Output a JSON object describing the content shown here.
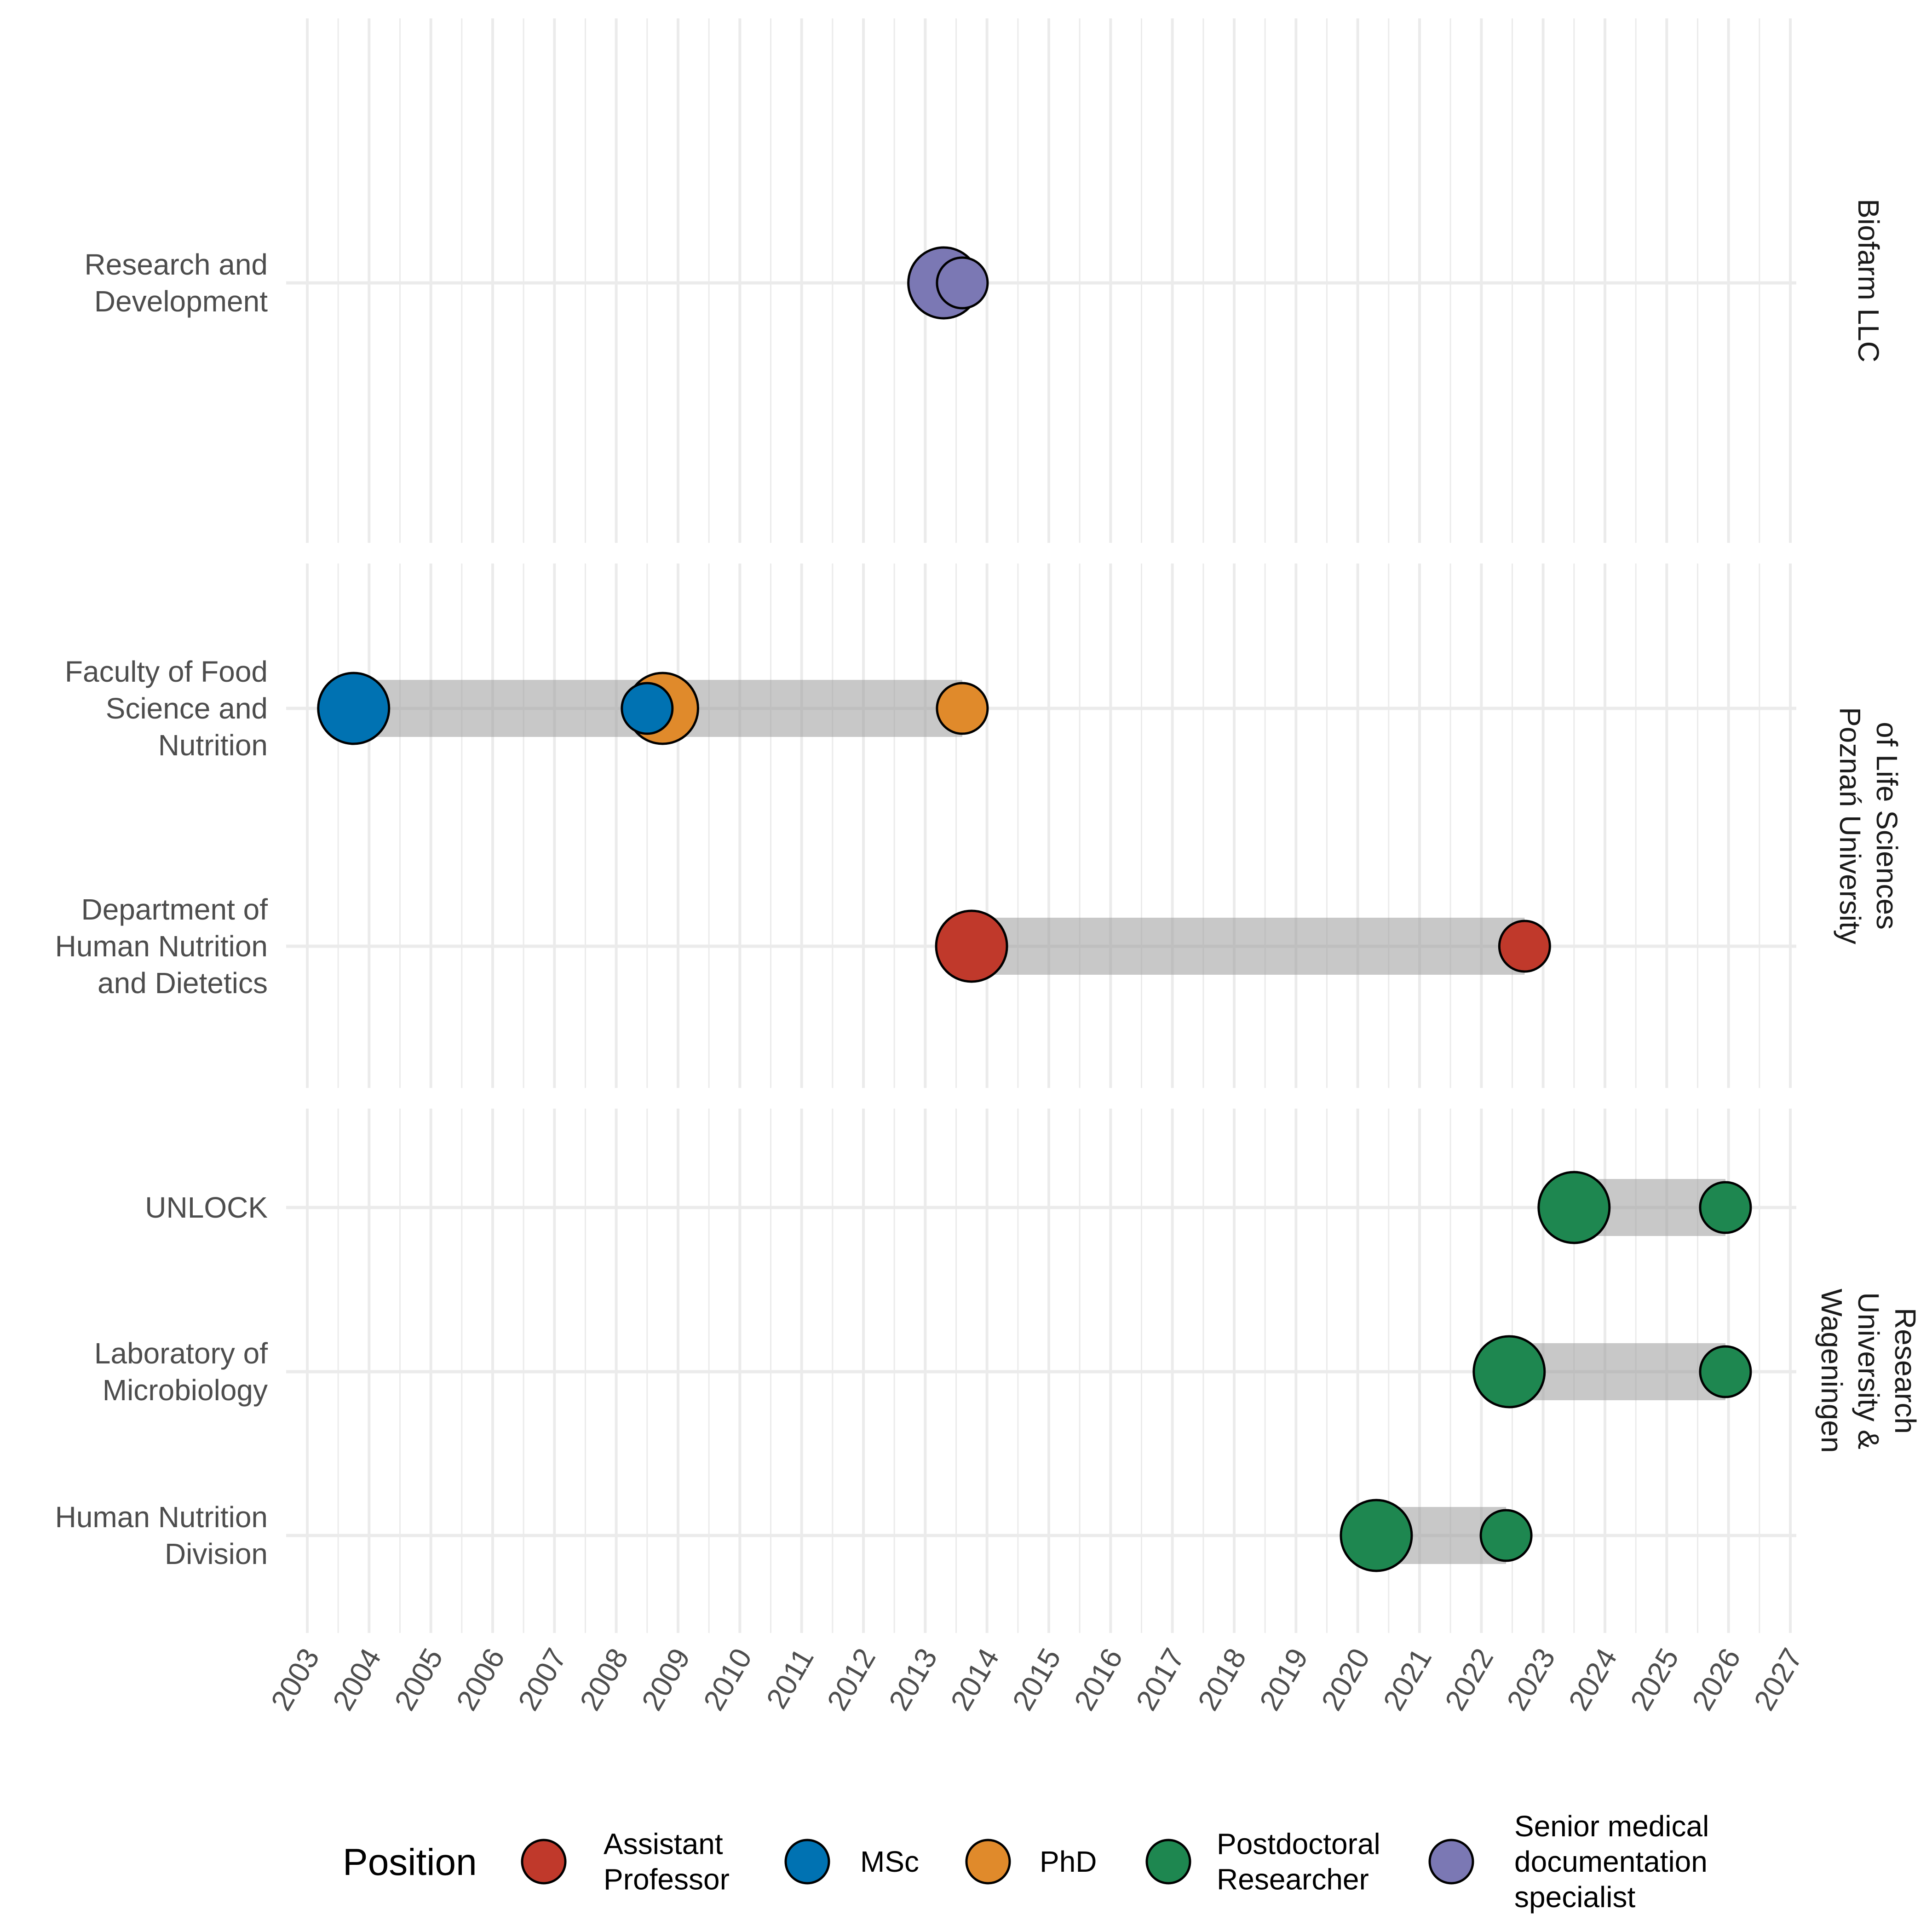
{
  "chart_data": {
    "type": "scatter",
    "xlabel": "",
    "ylabel": "",
    "xlim": [
      2003,
      2027
    ],
    "x_ticks": [
      "2003",
      "2004",
      "2005",
      "2006",
      "2007",
      "2008",
      "2009",
      "2010",
      "2011",
      "2012",
      "2013",
      "2014",
      "2015",
      "2016",
      "2017",
      "2018",
      "2019",
      "2020",
      "2021",
      "2022",
      "2023",
      "2024",
      "2025",
      "2026",
      "2027"
    ],
    "grid": true,
    "legend": {
      "title": "Position",
      "position": "bottom",
      "items": [
        {
          "name": "Assistant Professor",
          "lines": [
            "Assistant",
            "Professor"
          ],
          "color": "#C0392B"
        },
        {
          "name": "MSc",
          "lines": [
            "MSc"
          ],
          "color": "#0072B2"
        },
        {
          "name": "PhD",
          "lines": [
            "PhD"
          ],
          "color": "#E08A2B"
        },
        {
          "name": "Postdoctoral Researcher",
          "lines": [
            "Postdoctoral",
            "Researcher"
          ],
          "color": "#1E8750"
        },
        {
          "name": "Senior medical documentation specialist",
          "lines": [
            "Senior medical",
            "documentation",
            "specialist"
          ],
          "color": "#7B78B4"
        }
      ]
    },
    "facets": [
      {
        "name": "Biofarm LLC",
        "strip_lines": [
          "Biofarm LLC"
        ],
        "rows": [
          {
            "label": "Research and Development",
            "label_lines": [
              "Research and",
              "Development"
            ],
            "points": [
              {
                "x": 2013.3,
                "position": "Senior medical documentation specialist",
                "kind": "start"
              },
              {
                "x": 2013.6,
                "position": "Senior medical documentation specialist",
                "kind": "end"
              }
            ]
          }
        ]
      },
      {
        "name": "Poznań University of Life Sciences",
        "strip_lines": [
          "Poznań University",
          "of Life Sciences"
        ],
        "rows": [
          {
            "label": "Faculty of Food Science and Nutrition",
            "label_lines": [
              "Faculty of Food",
              "Science and",
              "Nutrition"
            ],
            "segments": [
              {
                "start": 2003.75,
                "end": 2008.5,
                "position": "MSc"
              },
              {
                "start": 2008.75,
                "end": 2013.6,
                "position": "PhD"
              }
            ],
            "points": [
              {
                "x": 2003.75,
                "position": "MSc",
                "kind": "start"
              },
              {
                "x": 2008.75,
                "position": "PhD",
                "kind": "start"
              },
              {
                "x": 2008.5,
                "position": "MSc",
                "kind": "end"
              },
              {
                "x": 2013.6,
                "position": "PhD",
                "kind": "end"
              }
            ]
          },
          {
            "label": "Department of Human Nutrition and Dietetics",
            "label_lines": [
              "Department of",
              "Human Nutrition",
              "and Dietetics"
            ],
            "segments": [
              {
                "start": 2013.75,
                "end": 2022.7,
                "position": "Assistant Professor"
              }
            ],
            "points": [
              {
                "x": 2013.75,
                "position": "Assistant Professor",
                "kind": "start"
              },
              {
                "x": 2022.7,
                "position": "Assistant Professor",
                "kind": "end"
              }
            ]
          }
        ]
      },
      {
        "name": "Wageningen University & Research",
        "strip_lines": [
          "Wageningen",
          "University &",
          "Research"
        ],
        "rows": [
          {
            "label": "UNLOCK",
            "label_lines": [
              "UNLOCK"
            ],
            "segments": [
              {
                "start": 2023.5,
                "end": 2025.95,
                "position": "Postdoctoral Researcher"
              }
            ],
            "points": [
              {
                "x": 2023.5,
                "position": "Postdoctoral Researcher",
                "kind": "start"
              },
              {
                "x": 2025.95,
                "position": "Postdoctoral Researcher",
                "kind": "end"
              }
            ]
          },
          {
            "label": "Laboratory of Microbiology",
            "label_lines": [
              "Laboratory of",
              "Microbiology"
            ],
            "segments": [
              {
                "start": 2022.45,
                "end": 2025.95,
                "position": "Postdoctoral Researcher"
              }
            ],
            "points": [
              {
                "x": 2022.45,
                "position": "Postdoctoral Researcher",
                "kind": "start"
              },
              {
                "x": 2025.95,
                "position": "Postdoctoral Researcher",
                "kind": "end"
              }
            ]
          },
          {
            "label": "Human Nutrition Division",
            "label_lines": [
              "Human Nutrition",
              "Division"
            ],
            "segments": [
              {
                "start": 2020.3,
                "end": 2022.4,
                "position": "Postdoctoral Researcher"
              }
            ],
            "points": [
              {
                "x": 2020.3,
                "position": "Postdoctoral Researcher",
                "kind": "start"
              },
              {
                "x": 2022.4,
                "position": "Postdoctoral Researcher",
                "kind": "end"
              }
            ]
          }
        ]
      }
    ]
  }
}
